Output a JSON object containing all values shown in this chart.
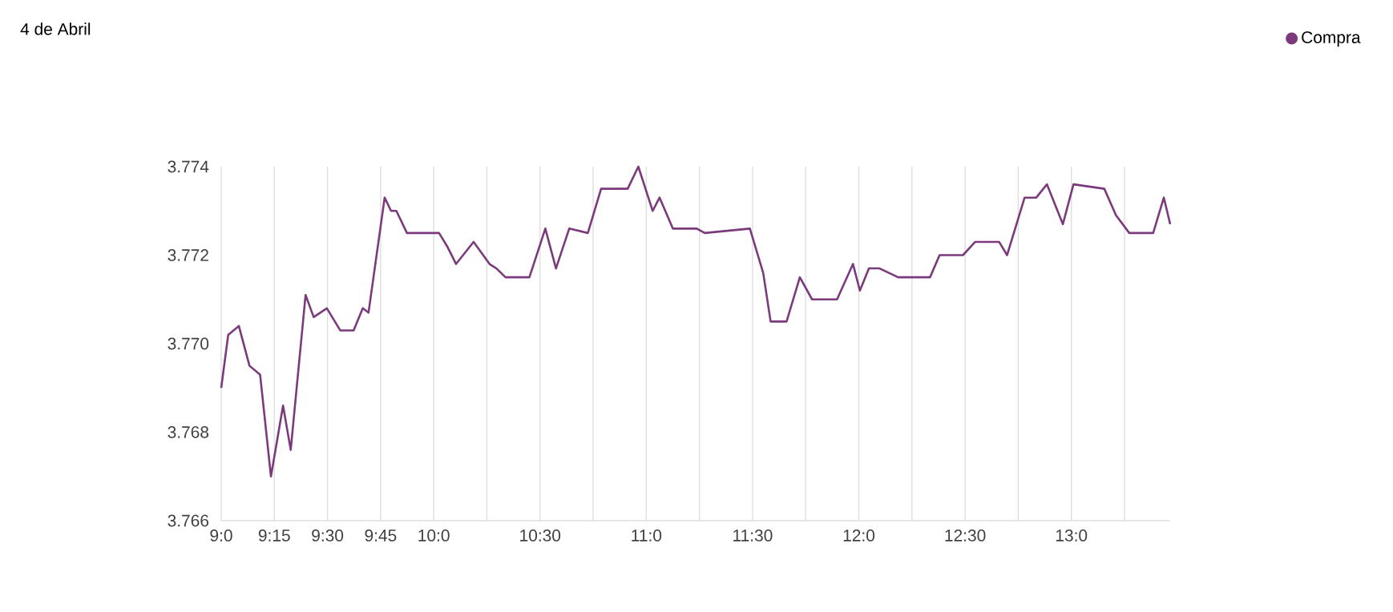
{
  "chart_data": {
    "type": "line",
    "title": "4 de Abril",
    "x": [
      9.0,
      9.033,
      9.083,
      9.133,
      9.183,
      9.234,
      9.291,
      9.327,
      9.397,
      9.435,
      9.497,
      9.56,
      9.623,
      9.666,
      9.693,
      9.769,
      9.799,
      9.824,
      9.874,
      10.025,
      10.063,
      10.105,
      10.1875,
      10.2625,
      10.295,
      10.3375,
      10.45,
      10.525,
      10.575,
      10.6375,
      10.725,
      10.7875,
      10.9125,
      10.9625,
      11.03,
      11.0625,
      11.125,
      11.2375,
      11.275,
      11.4875,
      11.55,
      11.585,
      11.66,
      11.7225,
      11.78,
      11.8975,
      11.9725,
      12.005,
      12.0475,
      12.0975,
      12.185,
      12.335,
      12.38,
      12.49,
      12.5475,
      12.66,
      12.6975,
      12.78,
      12.835,
      12.885,
      12.96,
      13.01,
      13.155,
      13.21,
      13.2725,
      13.385,
      13.435,
      13.465
    ],
    "series": [
      {
        "name": "Compra",
        "color": "#7b3a7c",
        "values": [
          3.769,
          3.7702,
          3.7704,
          3.7695,
          3.7693,
          3.767,
          3.7686,
          3.7676,
          3.7711,
          3.7706,
          3.7708,
          3.7703,
          3.7703,
          3.7708,
          3.7707,
          3.7733,
          3.773,
          3.773,
          3.7725,
          3.7725,
          3.7722,
          3.7718,
          3.7723,
          3.7718,
          3.7717,
          3.7715,
          3.7715,
          3.7726,
          3.7717,
          3.7726,
          3.7725,
          3.7735,
          3.7735,
          3.774,
          3.773,
          3.7733,
          3.7726,
          3.7726,
          3.7725,
          3.7726,
          3.7716,
          3.7705,
          3.7705,
          3.7715,
          3.771,
          3.771,
          3.7718,
          3.7712,
          3.7717,
          3.7717,
          3.7715,
          3.7715,
          3.772,
          3.772,
          3.7723,
          3.7723,
          3.772,
          3.7733,
          3.7733,
          3.7736,
          3.7727,
          3.7736,
          3.7735,
          3.7729,
          3.7725,
          3.7725,
          3.7733,
          3.7727
        ]
      }
    ],
    "xticks": [
      {
        "value": 9,
        "label": "9:0"
      },
      {
        "value": 9.25,
        "label": "9:15"
      },
      {
        "value": 9.5,
        "label": "9:30"
      },
      {
        "value": 9.75,
        "label": "9:45"
      },
      {
        "value": 10,
        "label": "10:0"
      },
      {
        "value": 10.25,
        "label": null
      },
      {
        "value": 10.5,
        "label": "10:30"
      },
      {
        "value": 10.75,
        "label": null
      },
      {
        "value": 11,
        "label": "11:0"
      },
      {
        "value": 11.25,
        "label": null
      },
      {
        "value": 11.5,
        "label": "11:30"
      },
      {
        "value": 11.75,
        "label": null
      },
      {
        "value": 12,
        "label": "12:0"
      },
      {
        "value": 12.25,
        "label": null
      },
      {
        "value": 12.5,
        "label": "12:30"
      },
      {
        "value": 12.75,
        "label": null
      },
      {
        "value": 13,
        "label": "13:0"
      },
      {
        "value": 13.25,
        "label": null
      }
    ],
    "xlim": [
      9,
      13.465
    ],
    "ylim": [
      3.766,
      3.774
    ],
    "yticks": [
      3.766,
      3.768,
      {
        "value": 3.77,
        "label": "3.770"
      },
      3.772,
      3.774
    ],
    "grid": "x",
    "legend": "top right",
    "marker": "none",
    "line_style": "solid"
  }
}
